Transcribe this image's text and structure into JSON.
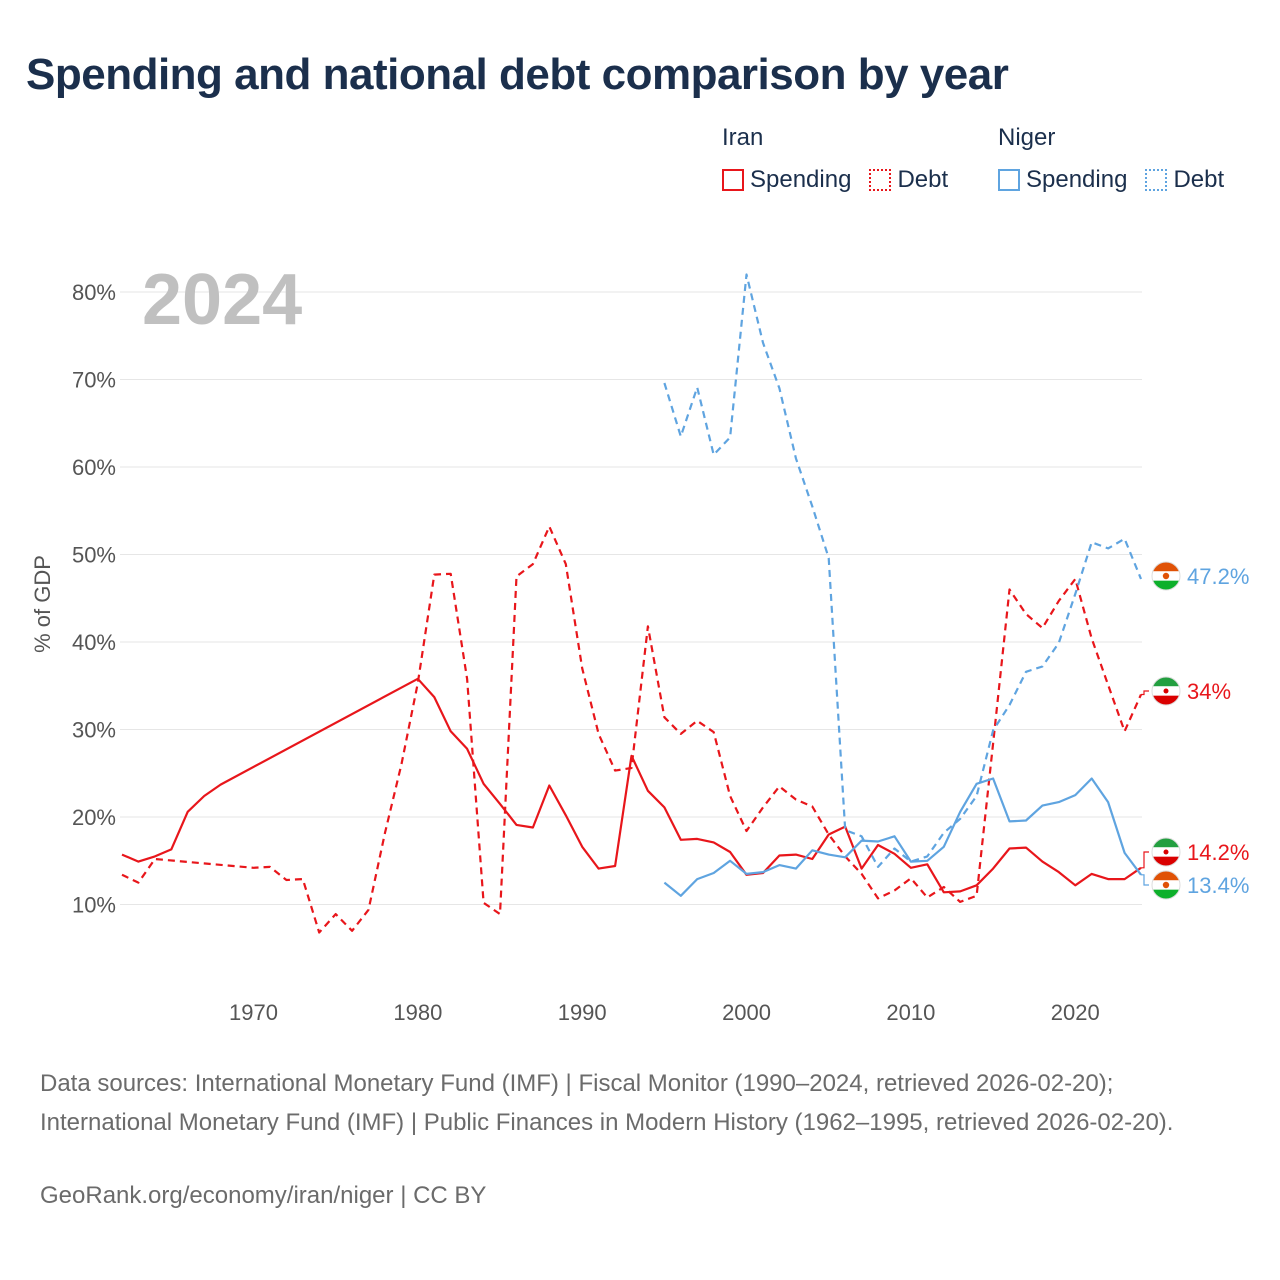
{
  "title": "Spending and national debt comparison by year",
  "legend": {
    "groups": [
      {
        "country": "Iran",
        "color": "#e8161b",
        "items": [
          {
            "label": "Spending",
            "style": "solid"
          },
          {
            "label": "Debt",
            "style": "dotted"
          }
        ]
      },
      {
        "country": "Niger",
        "color": "#5fa4e0",
        "items": [
          {
            "label": "Spending",
            "style": "solid"
          },
          {
            "label": "Debt",
            "style": "dotted"
          }
        ]
      }
    ]
  },
  "year_label": "2024",
  "sources": "Data sources: International Monetary Fund (IMF) | Fiscal Monitor (1990–2024, retrieved 2026-02-20); International Monetary Fund (IMF) | Public Finances in Modern History (1962–1995, retrieved 2026-02-20).",
  "credit": "GeoRank.org/economy/iran/niger | CC BY",
  "chart_data": {
    "type": "line",
    "title": "Spending and national debt comparison by year",
    "xlabel": "",
    "ylabel": "% of GDP",
    "xlim": [
      1962,
      2024
    ],
    "ylim": [
      0,
      82
    ],
    "xticks": [
      1970,
      1980,
      1990,
      2000,
      2010,
      2020
    ],
    "xtick_labels": [
      "1970",
      "1980",
      "1990",
      "2000",
      "2010",
      "2020"
    ],
    "yticks": [
      10,
      20,
      30,
      40,
      50,
      60,
      70,
      80
    ],
    "ytick_labels": [
      "10%",
      "20%",
      "30%",
      "40%",
      "50%",
      "60%",
      "70%",
      "80%"
    ],
    "grid": true,
    "legend_position": "top-right",
    "series": [
      {
        "name": "Iran Spending",
        "country": "Iran",
        "color": "#e8161b",
        "dash": "solid",
        "end_label": "14.2%",
        "points": [
          [
            1962,
            15.7
          ],
          [
            1963,
            14.9
          ],
          [
            1964,
            15.5
          ],
          [
            1965,
            16.3
          ],
          [
            1966,
            20.6
          ],
          [
            1967,
            22.4
          ],
          [
            1968,
            23.7
          ],
          [
            1980,
            35.8
          ],
          [
            1981,
            33.7
          ],
          [
            1982,
            29.8
          ],
          [
            1983,
            27.8
          ],
          [
            1984,
            23.8
          ],
          [
            1985,
            21.5
          ],
          [
            1986,
            19.1
          ],
          [
            1987,
            18.8
          ],
          [
            1988,
            23.6
          ],
          [
            1989,
            20.2
          ],
          [
            1990,
            16.6
          ],
          [
            1991,
            14.1
          ],
          [
            1992,
            14.4
          ],
          [
            1993,
            27.0
          ],
          [
            1994,
            23.0
          ],
          [
            1995,
            21.1
          ],
          [
            1996,
            17.4
          ],
          [
            1997,
            17.5
          ],
          [
            1998,
            17.1
          ],
          [
            1999,
            16.0
          ],
          [
            2000,
            13.4
          ],
          [
            2001,
            13.6
          ],
          [
            2002,
            15.6
          ],
          [
            2003,
            15.7
          ],
          [
            2004,
            15.2
          ],
          [
            2005,
            18.0
          ],
          [
            2006,
            18.9
          ],
          [
            2007,
            14.1
          ],
          [
            2008,
            16.8
          ],
          [
            2009,
            15.8
          ],
          [
            2010,
            14.2
          ],
          [
            2011,
            14.6
          ],
          [
            2012,
            11.4
          ],
          [
            2013,
            11.5
          ],
          [
            2014,
            12.2
          ],
          [
            2015,
            14.1
          ],
          [
            2016,
            16.4
          ],
          [
            2017,
            16.5
          ],
          [
            2018,
            14.9
          ],
          [
            2019,
            13.7
          ],
          [
            2020,
            12.2
          ],
          [
            2021,
            13.5
          ],
          [
            2022,
            12.9
          ],
          [
            2023,
            12.9
          ],
          [
            2024,
            14.2
          ]
        ],
        "interpolated_gaps": [
          [
            1968,
            1980
          ]
        ]
      },
      {
        "name": "Iran Debt",
        "country": "Iran",
        "color": "#e8161b",
        "dash": "dashed",
        "end_label": "34%",
        "points": [
          [
            1962,
            13.4
          ],
          [
            1963,
            12.5
          ],
          [
            1964,
            15.2
          ],
          [
            1970,
            14.2
          ],
          [
            1971,
            14.3
          ],
          [
            1972,
            12.8
          ],
          [
            1973,
            12.9
          ],
          [
            1974,
            6.8
          ],
          [
            1975,
            8.9
          ],
          [
            1976,
            7.0
          ],
          [
            1977,
            9.4
          ],
          [
            1978,
            18.2
          ],
          [
            1979,
            26.0
          ],
          [
            1980,
            35.3
          ],
          [
            1981,
            47.7
          ],
          [
            1982,
            47.8
          ],
          [
            1983,
            35.8
          ],
          [
            1984,
            10.2
          ],
          [
            1985,
            8.9
          ],
          [
            1986,
            47.5
          ],
          [
            1987,
            48.9
          ],
          [
            1988,
            53.2
          ],
          [
            1989,
            48.9
          ],
          [
            1990,
            37.0
          ],
          [
            1991,
            29.5
          ],
          [
            1992,
            25.3
          ],
          [
            1993,
            25.6
          ],
          [
            1994,
            41.8
          ],
          [
            1995,
            31.4
          ],
          [
            1996,
            29.5
          ],
          [
            1997,
            31.0
          ],
          [
            1998,
            29.7
          ],
          [
            1999,
            22.4
          ],
          [
            2000,
            18.4
          ],
          [
            2001,
            21.1
          ],
          [
            2002,
            23.5
          ],
          [
            2003,
            22.0
          ],
          [
            2004,
            21.2
          ],
          [
            2005,
            18.0
          ],
          [
            2006,
            15.5
          ],
          [
            2007,
            13.5
          ],
          [
            2008,
            10.7
          ],
          [
            2009,
            11.6
          ],
          [
            2010,
            13.0
          ],
          [
            2011,
            10.8
          ],
          [
            2012,
            12.0
          ],
          [
            2013,
            10.3
          ],
          [
            2014,
            11.0
          ],
          [
            2015,
            28.4
          ],
          [
            2016,
            46.0
          ],
          [
            2017,
            43.2
          ],
          [
            2018,
            41.6
          ],
          [
            2019,
            44.7
          ],
          [
            2020,
            47.2
          ],
          [
            2021,
            40.4
          ],
          [
            2022,
            35.1
          ],
          [
            2023,
            29.8
          ],
          [
            2024,
            34.0
          ]
        ],
        "interpolated_gaps": [
          [
            1964,
            1970
          ]
        ]
      },
      {
        "name": "Niger Spending",
        "country": "Niger",
        "color": "#5fa4e0",
        "dash": "solid",
        "end_label": "13.4%",
        "points": [
          [
            1995,
            12.5
          ],
          [
            1996,
            11.0
          ],
          [
            1997,
            12.9
          ],
          [
            1998,
            13.6
          ],
          [
            1999,
            15.0
          ],
          [
            2000,
            13.5
          ],
          [
            2001,
            13.7
          ],
          [
            2002,
            14.5
          ],
          [
            2003,
            14.1
          ],
          [
            2004,
            16.2
          ],
          [
            2005,
            15.7
          ],
          [
            2006,
            15.4
          ],
          [
            2007,
            17.3
          ],
          [
            2008,
            17.2
          ],
          [
            2009,
            17.8
          ],
          [
            2010,
            14.9
          ],
          [
            2011,
            15.0
          ],
          [
            2012,
            16.6
          ],
          [
            2013,
            20.6
          ],
          [
            2014,
            23.8
          ],
          [
            2015,
            24.4
          ],
          [
            2016,
            19.5
          ],
          [
            2017,
            19.6
          ],
          [
            2018,
            21.3
          ],
          [
            2019,
            21.7
          ],
          [
            2020,
            22.5
          ],
          [
            2021,
            24.4
          ],
          [
            2022,
            21.7
          ],
          [
            2023,
            15.9
          ],
          [
            2024,
            13.4
          ]
        ]
      },
      {
        "name": "Niger Debt",
        "country": "Niger",
        "color": "#5fa4e0",
        "dash": "dashed",
        "end_label": "47.2%",
        "points": [
          [
            1995,
            69.6
          ],
          [
            1996,
            63.5
          ],
          [
            1997,
            69.1
          ],
          [
            1998,
            61.4
          ],
          [
            1999,
            63.4
          ],
          [
            2000,
            82.0
          ],
          [
            2001,
            74.2
          ],
          [
            2002,
            69.0
          ],
          [
            2003,
            61.0
          ],
          [
            2004,
            55.5
          ],
          [
            2005,
            49.6
          ],
          [
            2006,
            18.5
          ],
          [
            2007,
            17.8
          ],
          [
            2008,
            14.3
          ],
          [
            2009,
            16.4
          ],
          [
            2010,
            14.9
          ],
          [
            2011,
            15.5
          ],
          [
            2012,
            18.2
          ],
          [
            2013,
            19.8
          ],
          [
            2014,
            22.4
          ],
          [
            2015,
            29.9
          ],
          [
            2016,
            32.8
          ],
          [
            2017,
            36.6
          ],
          [
            2018,
            37.2
          ],
          [
            2019,
            39.9
          ],
          [
            2020,
            45.5
          ],
          [
            2021,
            51.4
          ],
          [
            2022,
            50.7
          ],
          [
            2023,
            51.8
          ],
          [
            2024,
            47.2
          ]
        ]
      }
    ]
  }
}
